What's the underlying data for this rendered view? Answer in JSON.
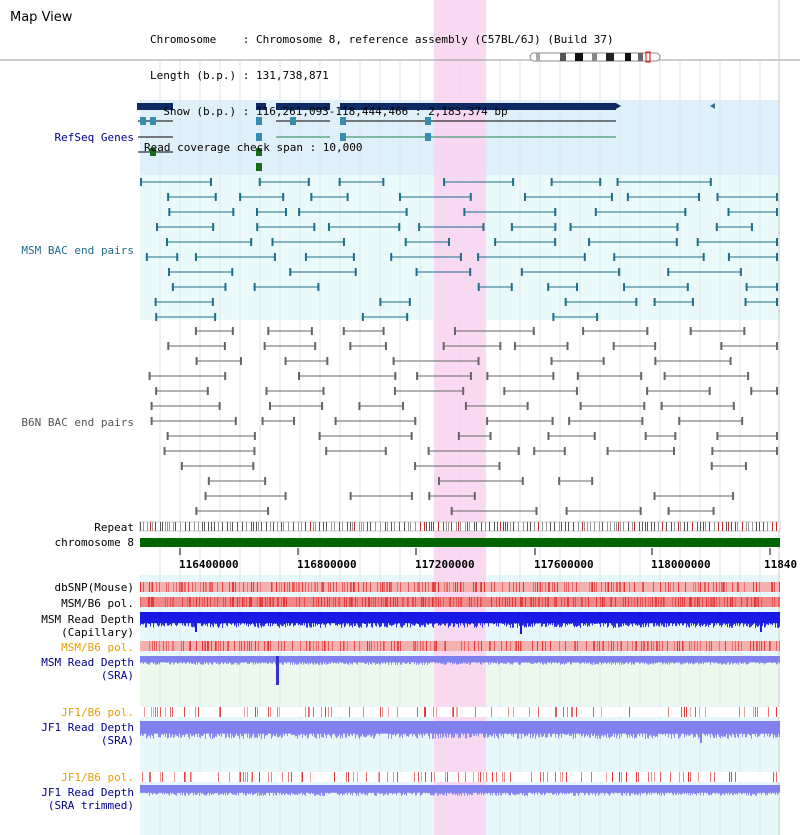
{
  "view_title": "Map View",
  "header": {
    "chromosome_line": "Chromosome    : Chromosome 8, reference assembly (C57BL/6J) (Build 37)",
    "length_line": "Length (b.p.) : 131,738,871",
    "show_line": "  Show (b.p.) : 116,261,093-118,444,466 : 2,183,374 bp",
    "coverage_line": "Read coverage check span : 10,000"
  },
  "tracks": {
    "refseq": "RefSeq Genes",
    "msm_bac": "MSM BAC end pairs",
    "b6n_bac": "B6N BAC end pairs",
    "repeat": "Repeat",
    "chromosome": "chromosome 8",
    "dbsnp": "dbSNP(Mouse)",
    "msm_b6_pol_1": "MSM/B6 pol.",
    "msm_read_depth_cap_1": "MSM Read Depth",
    "msm_read_depth_cap_2": "(Capillary)",
    "msm_b6_pol_2": "MSM/B6 pol.",
    "msm_read_depth_sra_1": "MSM Read Depth",
    "msm_read_depth_sra_2": "(SRA)",
    "jf1_b6_pol_1": "JF1/B6 pol.",
    "jf1_read_depth_sra_1": "JF1 Read Depth",
    "jf1_read_depth_sra_2": "(SRA)",
    "jf1_b6_pol_2": "JF1/B6 pol.",
    "jf1_read_depth_trim_1": "JF1 Read Depth",
    "jf1_read_depth_trim_2": "(SRA trimmed)"
  },
  "axis_ticks": [
    "116400000",
    "116800000",
    "117200000",
    "117600000",
    "118000000",
    "11840"
  ],
  "colors": {
    "refseq_bg": "#e0f0fa",
    "bac_bg": "#eaf9fa",
    "lower_bg": "#e8f8fa",
    "highlight": "#f9d3f0",
    "refseq_gene": "#0d2a63",
    "msm_bac": "#1f6e8a",
    "b6n_bac": "#666666",
    "chromosome_bar": "#006400",
    "snp_red": "#e03030",
    "depth_blue": "#1a1ae6",
    "depth_light": "#8080ee",
    "label_blue": "#00008b",
    "label_teal": "#1f6e8a",
    "label_orange": "#e8a000",
    "label_grey": "#555555"
  }
}
